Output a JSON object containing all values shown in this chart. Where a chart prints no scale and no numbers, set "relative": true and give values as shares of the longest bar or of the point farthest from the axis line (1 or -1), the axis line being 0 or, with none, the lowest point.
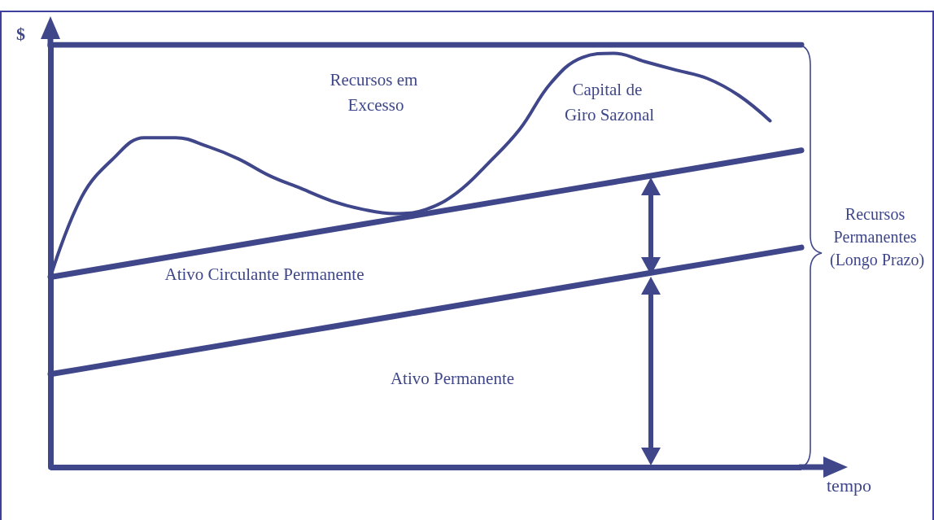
{
  "chart_data": {
    "type": "line",
    "relative": true,
    "xlabel": "tempo",
    "ylabel": "$",
    "categories": [
      null,
      null,
      null,
      null,
      null,
      null,
      null,
      null,
      null,
      null,
      null,
      null,
      null,
      null,
      null,
      null,
      null,
      null,
      null,
      null,
      null,
      null,
      null,
      null,
      null
    ],
    "series": [
      {
        "color": "#3f478a",
        "values": [
          1,
          1,
          1,
          1,
          1,
          1,
          1,
          1,
          1,
          1,
          1,
          1,
          1,
          1,
          1,
          1,
          1,
          1,
          1,
          1,
          1,
          1,
          1,
          1,
          1
        ]
      },
      {
        "color": "#3f478a",
        "values": [
          0.45,
          0.4625,
          0.475,
          0.4875,
          0.5,
          0.5125,
          0.525,
          0.5375,
          0.55,
          0.5625,
          0.575,
          0.5875,
          0.6,
          0.6125,
          0.625,
          0.6375,
          0.65,
          0.6625,
          0.675,
          0.6875,
          0.7,
          0.7125,
          0.725,
          0.7375,
          0.75
        ]
      },
      {
        "color": "#3f478a",
        "values": [
          0.22,
          0.2325,
          0.245,
          0.2575,
          0.27,
          0.2825,
          0.295,
          0.3075,
          0.32,
          0.3325,
          0.345,
          0.3575,
          0.37,
          0.3825,
          0.395,
          0.4075,
          0.42,
          0.4325,
          0.445,
          0.4575,
          0.47,
          0.4825,
          0.495,
          0.5075,
          0.52
        ]
      },
      {
        "color": "#3f478a",
        "values": [
          0.45,
          0.64,
          0.73,
          0.78,
          0.78,
          0.76,
          0.73,
          0.69,
          0.66,
          0.63,
          0.61,
          0.6,
          0.61,
          0.65,
          0.72,
          0.8,
          0.91,
          0.97,
          0.98,
          0.96,
          0.94,
          0.92,
          0.88,
          0.82,
          null
        ]
      }
    ],
    "annotations": [
      "Recursos em Excesso",
      "Capital de Giro Sazonal",
      "Ativo Circulante Permanente",
      "Ativo Permanente",
      "Recursos Permanentes (Longo Prazo)"
    ],
    "ref_lines": [
      {
        "axis": "y",
        "value": 0,
        "color": "#3f478a"
      }
    ],
    "marker": "none",
    "grid": false
  }
}
